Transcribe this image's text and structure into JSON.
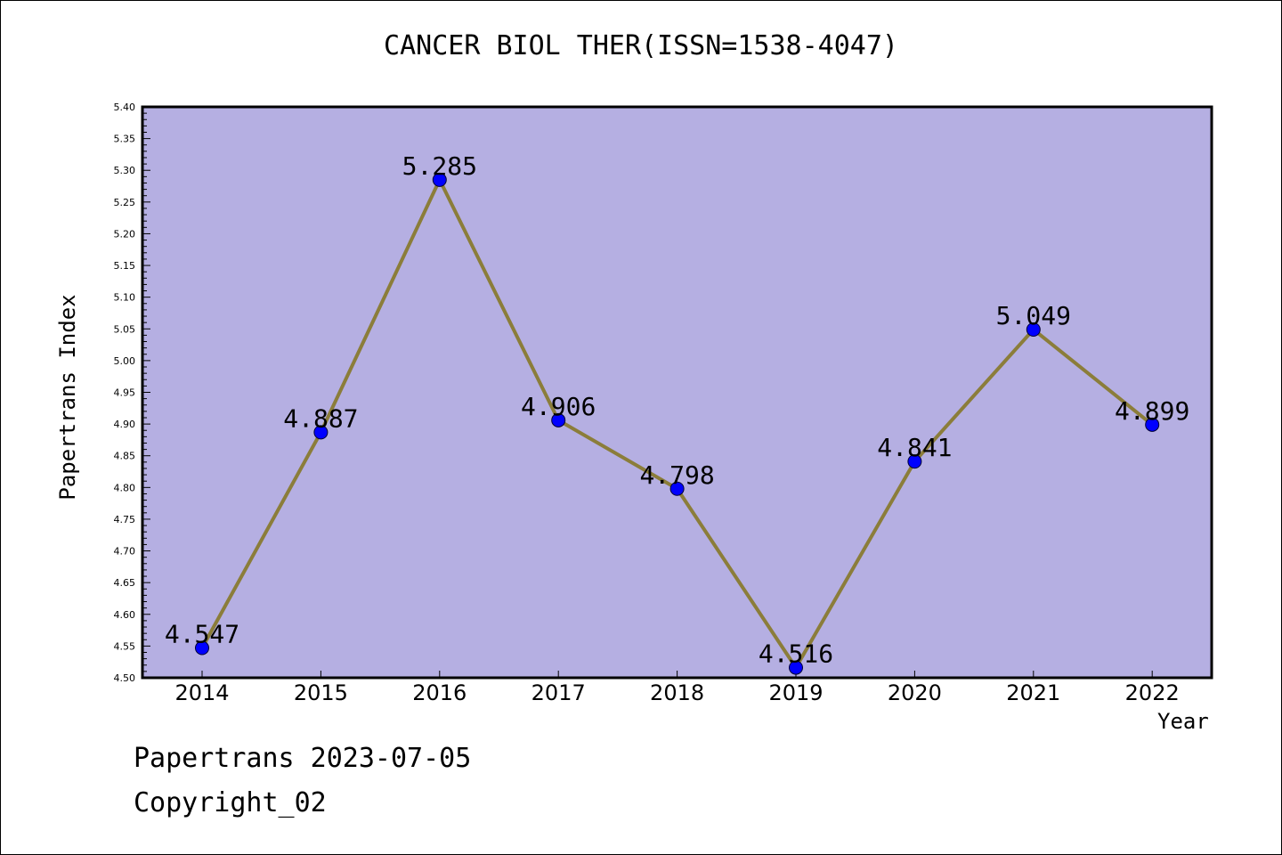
{
  "chart_data": {
    "type": "line",
    "title": "CANCER BIOL THER(ISSN=1538-4047)",
    "xlabel": "Year",
    "ylabel": "Papertrans Index",
    "categories": [
      "2014",
      "2015",
      "2016",
      "2017",
      "2018",
      "2019",
      "2020",
      "2021",
      "2022"
    ],
    "series": [
      {
        "values": [
          4.547,
          4.887,
          5.285,
          4.906,
          4.798,
          4.516,
          4.841,
          5.049,
          4.899
        ],
        "labels": [
          "4.547",
          "4.887",
          "5.285",
          "4.906",
          "4.798",
          "4.516",
          "4.841",
          "5.049",
          "4.899"
        ]
      }
    ],
    "ylim": [
      4.5,
      5.4
    ],
    "yticks": [
      "4.50",
      "4.55",
      "4.60",
      "4.65",
      "4.70",
      "4.75",
      "4.80",
      "4.85",
      "4.90",
      "4.95",
      "5.00",
      "5.05",
      "5.10",
      "5.15",
      "5.20",
      "5.25",
      "5.30",
      "5.35",
      "5.40"
    ],
    "grid": false,
    "colors": {
      "plot_background": "#b5afe2",
      "line": "#8b7d3a",
      "marker": "#0000ff"
    }
  },
  "footer": {
    "line1": "Papertrans 2023-07-05",
    "line2": "Copyright_02"
  }
}
